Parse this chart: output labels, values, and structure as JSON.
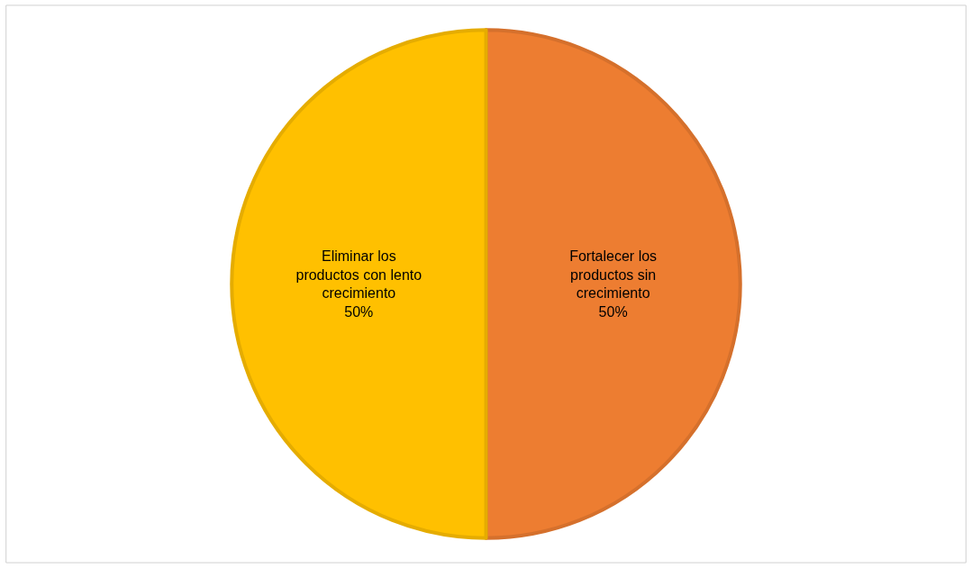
{
  "chart_data": {
    "type": "pie",
    "categories": [
      "Fortalecer los productos sin crecimiento",
      "Eliminar los productos con lento crecimiento"
    ],
    "values": [
      50,
      50
    ],
    "value_labels": [
      "50%",
      "50%"
    ],
    "colors": [
      "#ed7d31",
      "#ffc000"
    ],
    "legend": false
  }
}
